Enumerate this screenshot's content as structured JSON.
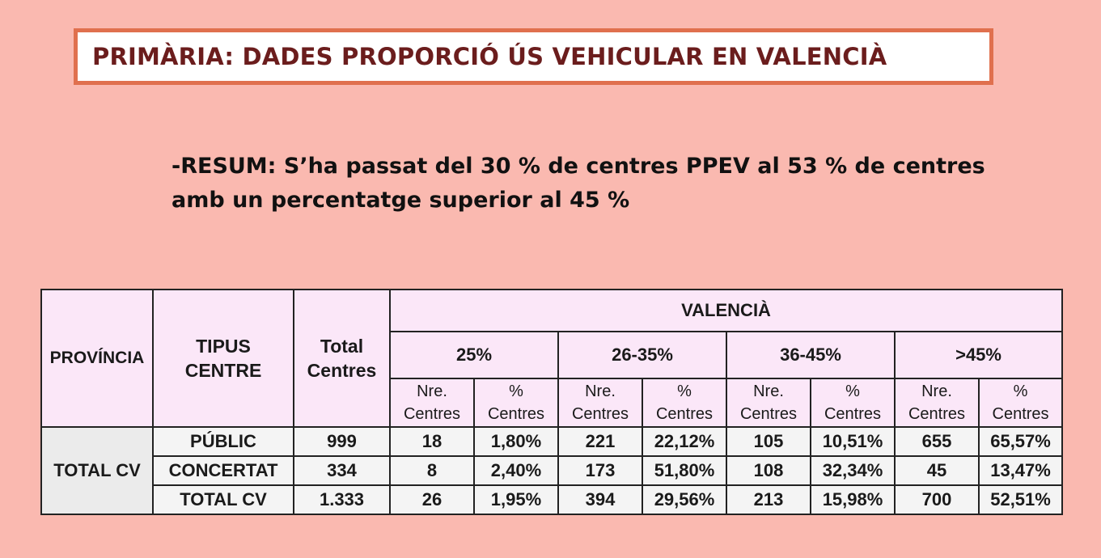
{
  "title": "PRIMÀRIA: DADES PROPORCIÓ ÚS VEHICULAR EN VALENCIÀ",
  "summary": {
    "line1": "-RESUM: S’ha passat del 30 % de centres PPEV al 53 % de centres",
    "line2": "amb un percentatge superior al 45 %"
  },
  "table": {
    "headers": {
      "provincia": "PROVÍNCIA",
      "tipus_line1": "TIPUS",
      "tipus_line2": "CENTRE",
      "total_line1": "Total",
      "total_line2": "Centres",
      "region": "VALENCIÀ",
      "bands": [
        "25%",
        "26-35%",
        "36-45%",
        ">45%"
      ],
      "sub_nre_line1": "Nre.",
      "sub_nre_line2": "Centres",
      "sub_pct_line1": "%",
      "sub_pct_line2": "Centres"
    },
    "province_label": "TOTAL CV",
    "rows": [
      {
        "tipus": "PÚBLIC",
        "total": "999",
        "cells": [
          "18",
          "1,80%",
          "221",
          "22,12%",
          "105",
          "10,51%",
          "655",
          "65,57%"
        ]
      },
      {
        "tipus": "CONCERTAT",
        "total": "334",
        "cells": [
          "8",
          "2,40%",
          "173",
          "51,80%",
          "108",
          "32,34%",
          "45",
          "13,47%"
        ]
      },
      {
        "tipus": "TOTAL CV",
        "total": "1.333",
        "cells": [
          "26",
          "1,95%",
          "394",
          "29,56%",
          "213",
          "15,98%",
          "700",
          "52,51%"
        ]
      }
    ]
  },
  "colors": {
    "background": "#fab9b0",
    "title_border": "#e0704e",
    "title_text": "#6b1d1d",
    "header_bg": "#fbe7f8",
    "body_bg": "#f4f4f4"
  }
}
